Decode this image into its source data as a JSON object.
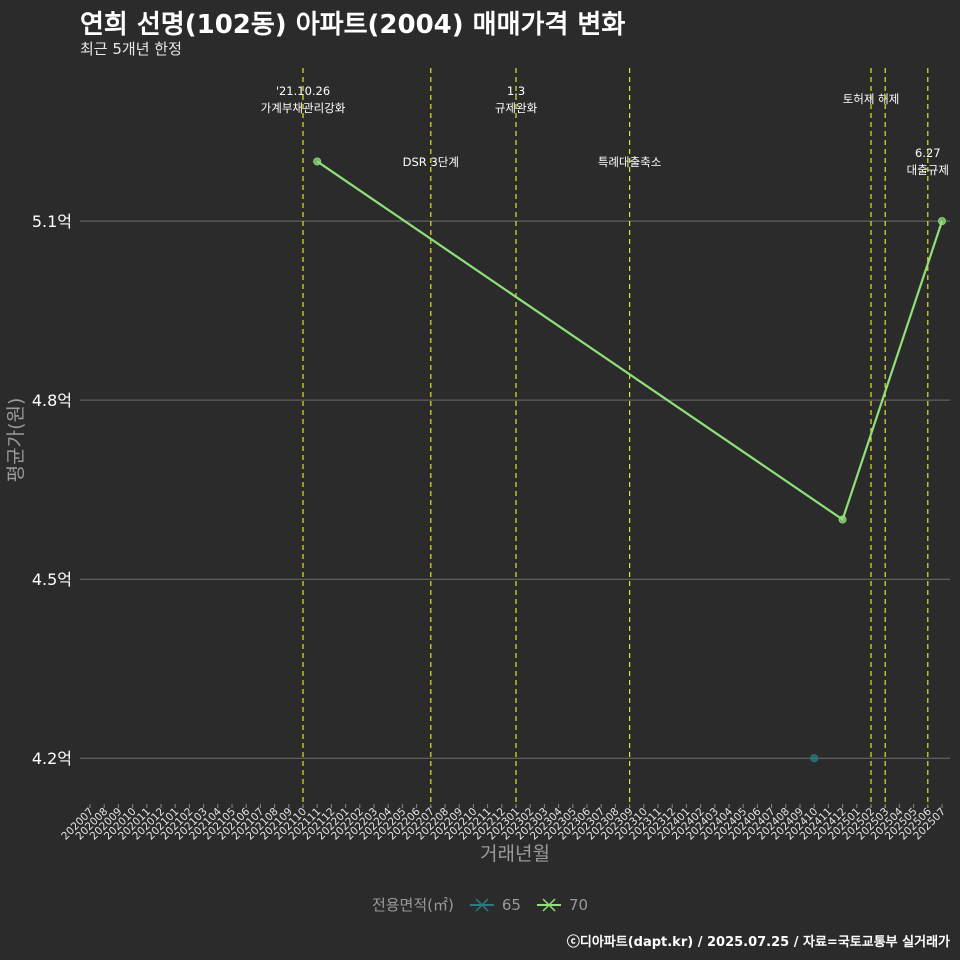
{
  "chart_data": {
    "type": "line",
    "title": "연희 선명(102동) 아파트(2004) 매매가격 변화",
    "subtitle": "최근 5개년 한정",
    "xlabel": "거래년월",
    "ylabel": "평균가(원)",
    "y_unit_suffix": "억",
    "ylim": [
      4.13,
      5.37
    ],
    "yticks": [
      4.2,
      4.5,
      4.8,
      5.1
    ],
    "ytick_labels": [
      "4.2억",
      "4.5억",
      "4.8억",
      "5.1억"
    ],
    "categories": [
      "202007",
      "202008",
      "202009",
      "202010",
      "202011",
      "202012",
      "202101",
      "202102",
      "202103",
      "202104",
      "202105",
      "202106",
      "202107",
      "202108",
      "202109",
      "202110",
      "202111",
      "202112",
      "202201",
      "202202",
      "202203",
      "202204",
      "202205",
      "202206",
      "202207",
      "202208",
      "202209",
      "202210",
      "202211",
      "202212",
      "202301",
      "202302",
      "202303",
      "202304",
      "202305",
      "202306",
      "202307",
      "202308",
      "202309",
      "202310",
      "202311",
      "202312",
      "202401",
      "202402",
      "202403",
      "202404",
      "202405",
      "202406",
      "202407",
      "202408",
      "202409",
      "202410",
      "202411",
      "202412",
      "202501",
      "202502",
      "202503",
      "202504",
      "202505",
      "202506",
      "202507"
    ],
    "series": [
      {
        "name": "65",
        "color": "#2a7b82",
        "points": [
          {
            "x": "202410",
            "y": 4.2
          }
        ]
      },
      {
        "name": "70",
        "color": "#8fe07a",
        "points": [
          {
            "x": "202111",
            "y": 5.2
          },
          {
            "x": "202412",
            "y": 4.6
          },
          {
            "x": "202507",
            "y": 5.1
          }
        ]
      }
    ],
    "events": [
      {
        "x": "202110",
        "lines": [
          "'21.10.26",
          "가계부채관리강화"
        ],
        "row": "top"
      },
      {
        "x": "202207",
        "lines": [
          "DSR 3단계"
        ],
        "row": "mid"
      },
      {
        "x": "202301",
        "lines": [
          "1.3",
          "규제완화"
        ],
        "row": "top"
      },
      {
        "x": "202309",
        "lines": [
          "특례대출축소"
        ],
        "row": "mid"
      },
      {
        "x": "202502",
        "lines": [
          "토허제 해제"
        ],
        "row": "upper"
      },
      {
        "x": "202503",
        "lines": [],
        "row": "none"
      },
      {
        "x": "202506",
        "lines": [
          "6.27",
          "대출규제"
        ],
        "row": "low"
      }
    ],
    "legend": {
      "title": "전용면적(㎡)",
      "position": "bottom"
    },
    "event_line_color": "#e3e32a",
    "grid_color": "#6e6e6e"
  },
  "caption": "ⓒ디아파트(dapt.kr) / 2025.07.25 / 자료=국토교통부 실거래가"
}
